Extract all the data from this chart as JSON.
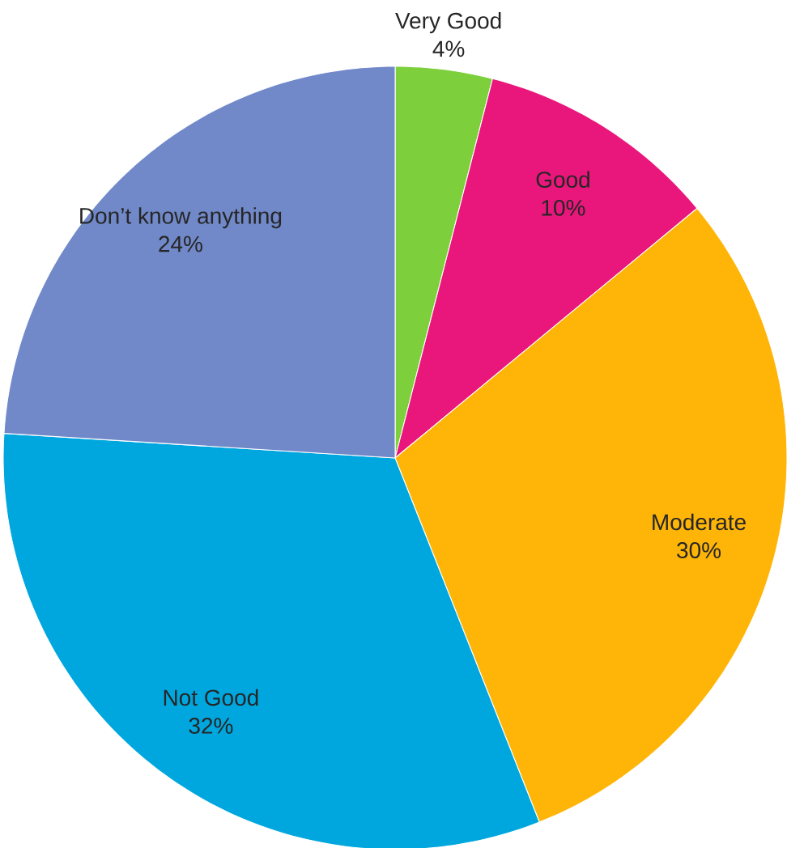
{
  "chart_data": {
    "type": "pie",
    "categories": [
      "Very Good",
      "Good",
      "Moderate",
      "Not Good",
      "Don’t know anything"
    ],
    "values": [
      4,
      10,
      30,
      32,
      24
    ],
    "value_labels": [
      "4%",
      "10%",
      "30%",
      "32%",
      "24%"
    ],
    "colors": [
      "#7dd03c",
      "#e9177b",
      "#ffb508",
      "#00a7de",
      "#7189c9"
    ]
  }
}
